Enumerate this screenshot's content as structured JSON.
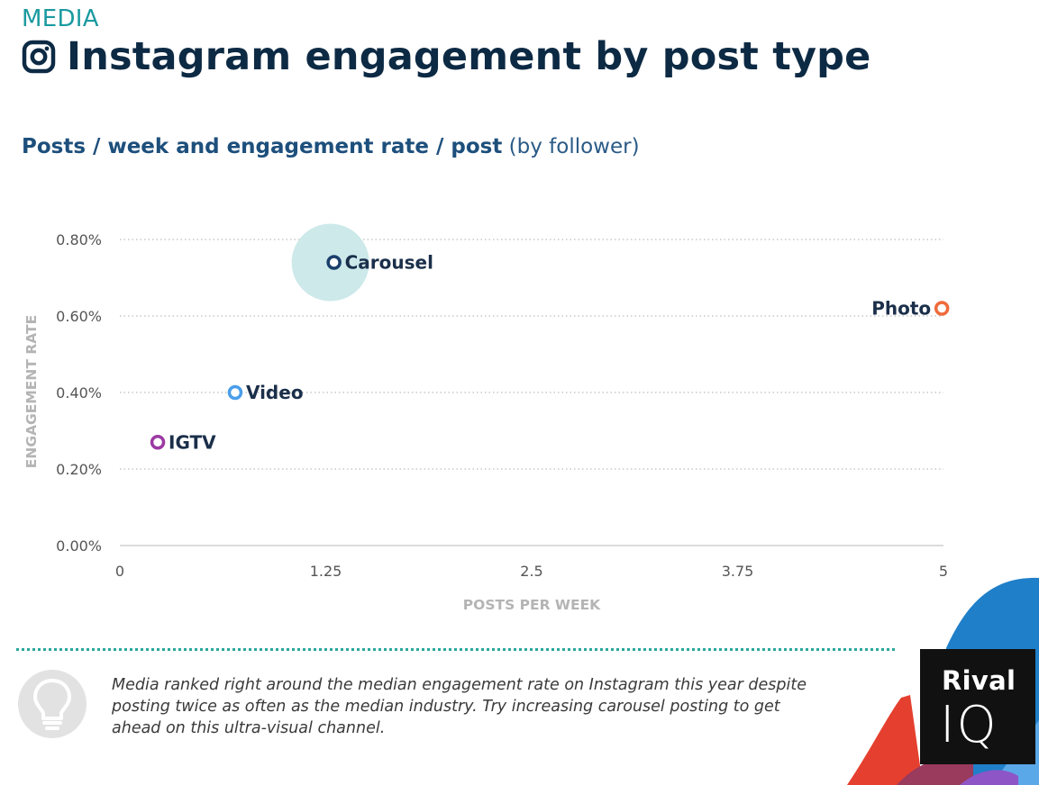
{
  "header": {
    "kicker": "MEDIA",
    "title": "Instagram engagement by post type",
    "subtitle_bold": "Posts / week and engagement rate / post",
    "subtitle_light": " (by follower)"
  },
  "chart_data": {
    "type": "scatter",
    "xlabel": "POSTS PER WEEK",
    "ylabel": "ENGAGEMENT RATE",
    "xlim": [
      0,
      5
    ],
    "ylim": [
      0,
      0.8
    ],
    "x_ticks": [
      0,
      1.25,
      2.5,
      3.75,
      5
    ],
    "x_tick_labels": [
      "0",
      "1.25",
      "2.5",
      "3.75",
      "5"
    ],
    "y_ticks": [
      0,
      0.2,
      0.4,
      0.6,
      0.8
    ],
    "y_tick_labels": [
      "0.00%",
      "0.20%",
      "0.40%",
      "0.60%",
      "0.80%"
    ],
    "grid": true,
    "points": [
      {
        "name": "Carousel",
        "x": 1.3,
        "y": 0.74,
        "color": "#1b3f6b",
        "highlight": true,
        "label_side": "right"
      },
      {
        "name": "Photo",
        "x": 4.99,
        "y": 0.62,
        "color": "#ef6b3b",
        "highlight": false,
        "label_side": "left"
      },
      {
        "name": "Video",
        "x": 0.7,
        "y": 0.4,
        "color": "#4a9eea",
        "highlight": false,
        "label_side": "right"
      },
      {
        "name": "IGTV",
        "x": 0.23,
        "y": 0.27,
        "color": "#9b3aa3",
        "highlight": false,
        "label_side": "right"
      }
    ],
    "highlight_color": "#cde9ea"
  },
  "footer": {
    "insight": "Media ranked right around the median engagement rate on Instagram this year despite posting twice as often as the median industry. Try increasing carousel posting to get ahead on this ultra-visual channel.",
    "bulb_icon": "lightbulb-icon",
    "logo_line1": "Rival",
    "logo_line2": "IQ"
  }
}
